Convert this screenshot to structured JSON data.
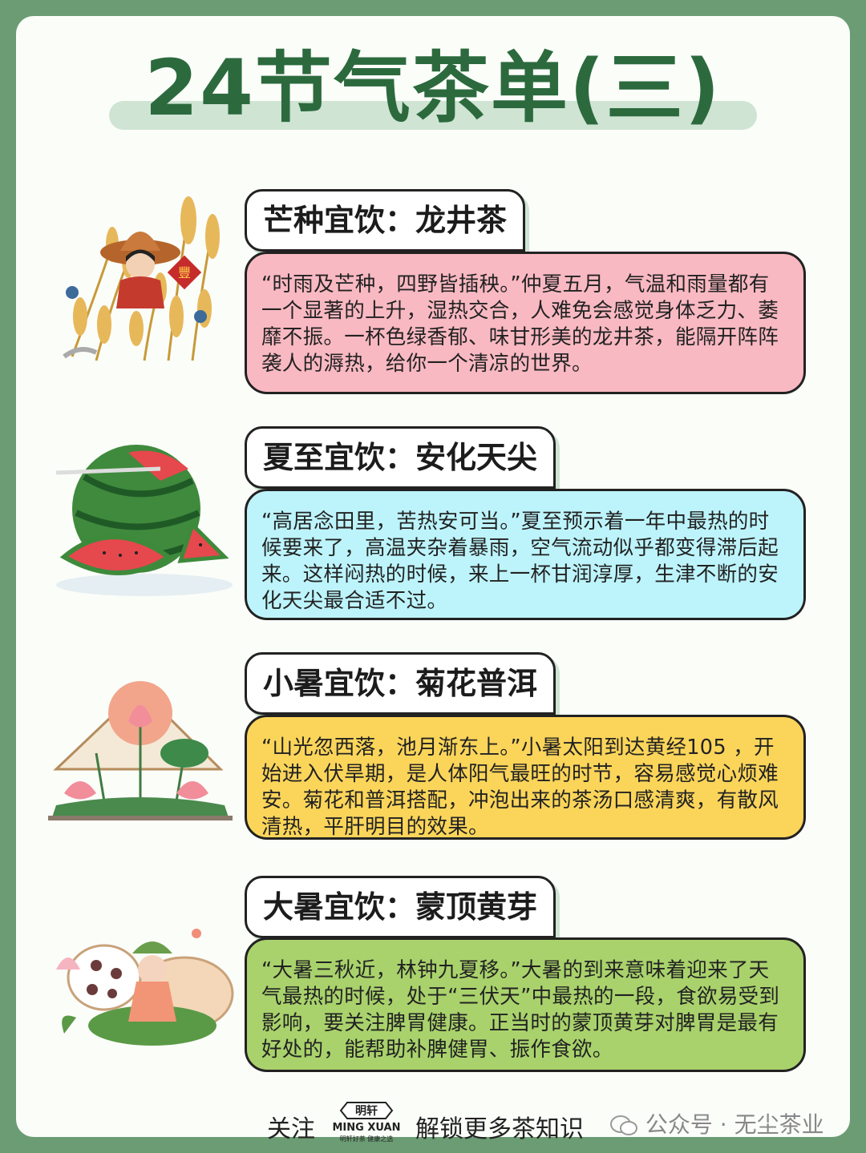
{
  "title": "24节气茶单(三)",
  "sections": [
    {
      "label": "芒种宜饮：龙井茶",
      "text": "“时雨及芒种，四野皆插秧。”仲夏五月，气温和雨量都有一个显著的上升，湿热交合，人难免会感觉身体乏力、萎靡不振。一杯色绿香郁、味甘形美的龙井茶，能隔开阵阵袭人的溽热，给你一个清凉的世界。",
      "color": "#f9b9c2",
      "illustration": "farmer-wheat-illustration"
    },
    {
      "label": "夏至宜饮：安化天尖",
      "text": "“高居念田里，苦热安可当。”夏至预示着一年中最热的时候要来了，高温夹杂着暴雨，空气流动似乎都变得滞后起来。这样闷热的时候，来上一杯甘润淳厚，生津不断的安化天尖最合适不过。",
      "color": "#bdf4fb",
      "illustration": "watermelon-illustration"
    },
    {
      "label": "小暑宜饮：菊花普洱",
      "text": "“山光忽西落，池月渐东上。”小暑太阳到达黄经105 ，开始进入伏旱期，是人体阳气最旺的时节，容易感觉心烦难安。菊花和普洱搭配，冲泡出来的茶汤口感清爽，有散风清热，平肝明目的效果。",
      "color": "#fbd55a",
      "illustration": "lotus-fan-illustration"
    },
    {
      "label": "大暑宜饮：蒙顶黄芽",
      "text": "“大暑三秋近，林钟九夏移。”大暑的到来意味着迎来了天气最热的时候，处于“三伏天”中最热的一段，食欲易受到影响，要关注脾胃健康。正当时的蒙顶黄芽对脾胃是最有好处的，能帮助补脾健胃、振作食欲。",
      "color": "#a9d26c",
      "illustration": "girl-lotus-root-illustration"
    }
  ],
  "footer": {
    "follow": "关注",
    "brand_cn": "明轩",
    "brand_en": "MING XUAN",
    "brand_tagline": "明轩好茶  健康之选",
    "unlock": "解锁更多茶知识",
    "wechat": "公众号 · 无尘茶业"
  }
}
